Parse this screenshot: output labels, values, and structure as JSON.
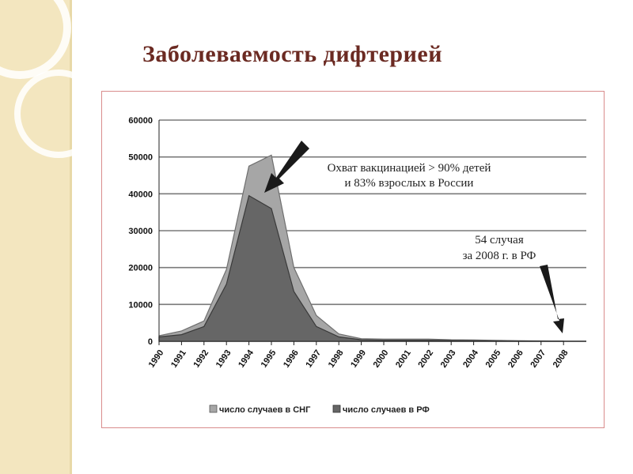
{
  "slide": {
    "title": "Заболеваемость дифтерией"
  },
  "colors": {
    "sng": "#a6a6a6",
    "rf": "#666666",
    "title": "#6b2a22",
    "frame": "#d98c8c"
  },
  "chart_data": {
    "type": "area",
    "x": [
      "1990",
      "1991",
      "1992",
      "1993",
      "1994",
      "1995",
      "1996",
      "1997",
      "1998",
      "1999",
      "2000",
      "2001",
      "2002",
      "2003",
      "2004",
      "2005",
      "2006",
      "2007",
      "2008"
    ],
    "series": [
      {
        "name": "число случаев в СНГ",
        "values": [
          1500,
          2800,
          5500,
          19500,
          47500,
          50500,
          20000,
          7000,
          2000,
          700,
          600,
          600,
          600,
          400,
          350,
          250,
          150,
          100,
          54
        ]
      },
      {
        "name": "число случаев в РФ",
        "values": [
          1200,
          1800,
          4000,
          15500,
          39500,
          36000,
          13500,
          4000,
          1200,
          400,
          300,
          300,
          300,
          250,
          200,
          150,
          100,
          50,
          54
        ]
      }
    ],
    "ylim": [
      0,
      60000
    ],
    "yticks": [
      "0",
      "10000",
      "20000",
      "30000",
      "40000",
      "50000",
      "60000"
    ],
    "grid": true,
    "legend_position": "bottom",
    "annotations": {
      "vaccination_line1": "Охват вакцинацией > 90% детей",
      "vaccination_line2": "и 83% взрослых в России",
      "cases_line1": "54 случая",
      "cases_line2": "за 2008 г. в РФ"
    }
  }
}
